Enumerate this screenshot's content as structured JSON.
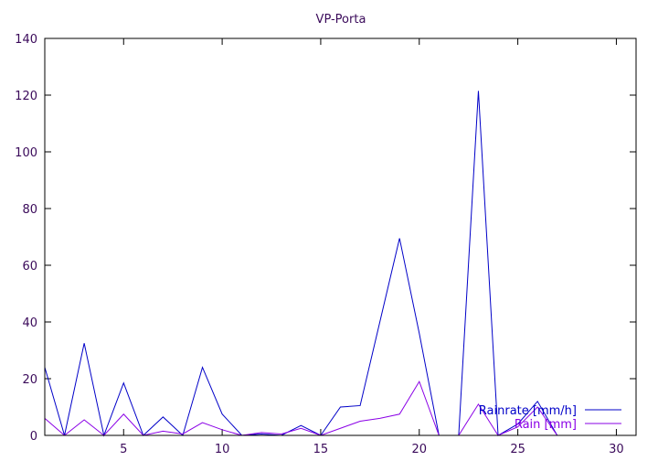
{
  "chart_data": {
    "type": "line",
    "title": "VP-Porta",
    "xlabel": "",
    "ylabel": "",
    "xlim": [
      1,
      31
    ],
    "ylim": [
      0,
      140
    ],
    "xticks": [
      5,
      10,
      15,
      20,
      25,
      30
    ],
    "yticks": [
      0,
      20,
      40,
      60,
      80,
      100,
      120,
      140
    ],
    "grid": false,
    "legend": "bottom-right",
    "x": [
      1,
      2,
      3,
      4,
      5,
      6,
      7,
      8,
      9,
      10,
      11,
      12,
      13,
      14,
      15,
      16,
      17,
      18,
      19,
      20,
      21,
      22,
      23,
      24,
      25,
      26,
      27,
      28,
      29,
      30,
      31
    ],
    "series": [
      {
        "name": "Rainrate [mm/h]",
        "color": "#0000c8",
        "values": [
          24,
          0,
          32.5,
          0,
          18.5,
          0,
          6.5,
          0,
          24,
          7.5,
          0,
          0.5,
          0,
          3.5,
          0,
          10,
          10.5,
          40,
          69.5,
          36,
          0,
          0,
          121.5,
          0,
          4,
          12,
          0,
          0,
          0,
          0,
          0
        ]
      },
      {
        "name": "Rain [mm]",
        "color": "#8a00e6",
        "values": [
          6,
          0,
          5.5,
          0,
          7.5,
          0,
          1.5,
          0.5,
          4.5,
          2,
          0,
          1,
          0.5,
          2.5,
          0,
          2.5,
          5,
          6,
          7.5,
          19,
          0,
          0,
          11,
          0,
          3,
          10,
          0,
          0,
          0,
          0,
          0
        ]
      }
    ]
  }
}
